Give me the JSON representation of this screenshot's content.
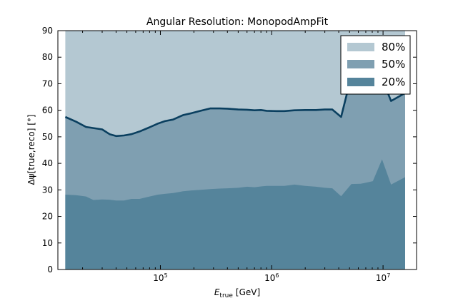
{
  "chart_data": {
    "type": "area",
    "title": "Angular Resolution: MonopodAmpFit",
    "xlabel": {
      "main": "E",
      "sub": "true",
      "unit": "[GeV]"
    },
    "ylabel": "Δψ[true,reco] [°]",
    "xscale": "log",
    "xlim": [
      12000,
      20000000
    ],
    "ylim": [
      0,
      90
    ],
    "yticks": [
      0,
      10,
      20,
      30,
      40,
      50,
      60,
      70,
      80,
      90
    ],
    "yticklabels": [
      "0",
      "10",
      "20",
      "30",
      "40",
      "50",
      "60",
      "70",
      "80",
      "90"
    ],
    "xticks": [
      100000,
      1000000,
      10000000
    ],
    "xticklabels": [
      {
        "base": "10",
        "exp": "5"
      },
      {
        "base": "10",
        "exp": "6"
      },
      {
        "base": "10",
        "exp": "7"
      }
    ],
    "legend": {
      "placement": "top-right"
    },
    "colors": {
      "s80": "#b4c8d2",
      "s50": "#7f9fb1",
      "s20": "#55849b",
      "line50": "#0a3f5f"
    },
    "x": [
      14000,
      17500,
      21500,
      25000,
      30000,
      35000,
      40000,
      47000,
      55000,
      65000,
      80000,
      95000,
      110000,
      130000,
      160000,
      190000,
      230000,
      280000,
      340000,
      400000,
      500000,
      600000,
      700000,
      800000,
      900000,
      1100000,
      1300000,
      1600000,
      2000000,
      2500000,
      3000000,
      3500000,
      4200000,
      5200000,
      6300000,
      8100000,
      9800000,
      11800000,
      15800000
    ],
    "series": [
      {
        "name": "80%",
        "values": [
          90,
          90,
          90,
          90,
          90,
          90,
          90,
          90,
          90,
          90,
          90,
          90,
          90,
          90,
          90,
          90,
          90,
          90,
          90,
          90,
          90,
          90,
          90,
          90,
          90,
          90,
          90,
          90,
          90,
          90,
          90,
          90,
          90,
          90,
          90,
          90,
          90,
          90,
          90
        ]
      },
      {
        "name": "50%",
        "values": [
          57.5,
          55.7,
          53.7,
          53.3,
          52.8,
          51.0,
          50.3,
          50.5,
          51.0,
          52.0,
          53.6,
          55.0,
          55.9,
          56.5,
          58.2,
          58.9,
          59.8,
          60.7,
          60.7,
          60.6,
          60.3,
          60.2,
          60.0,
          60.1,
          59.8,
          59.7,
          59.7,
          60.0,
          60.1,
          60.1,
          60.3,
          60.3,
          57.5,
          73.0,
          76.0,
          72.0,
          72.0,
          63.5,
          66.5
        ]
      },
      {
        "name": "20%",
        "values": [
          28.2,
          28.0,
          27.5,
          26.2,
          26.4,
          26.3,
          26.0,
          26.0,
          26.6,
          26.6,
          27.5,
          28.2,
          28.5,
          28.8,
          29.5,
          29.8,
          30.0,
          30.3,
          30.5,
          30.6,
          30.8,
          31.2,
          31.0,
          31.3,
          31.5,
          31.5,
          31.5,
          32.0,
          31.5,
          31.2,
          30.8,
          30.6,
          27.6,
          32.2,
          32.3,
          33.3,
          41.5,
          32.0,
          34.8
        ]
      }
    ]
  }
}
